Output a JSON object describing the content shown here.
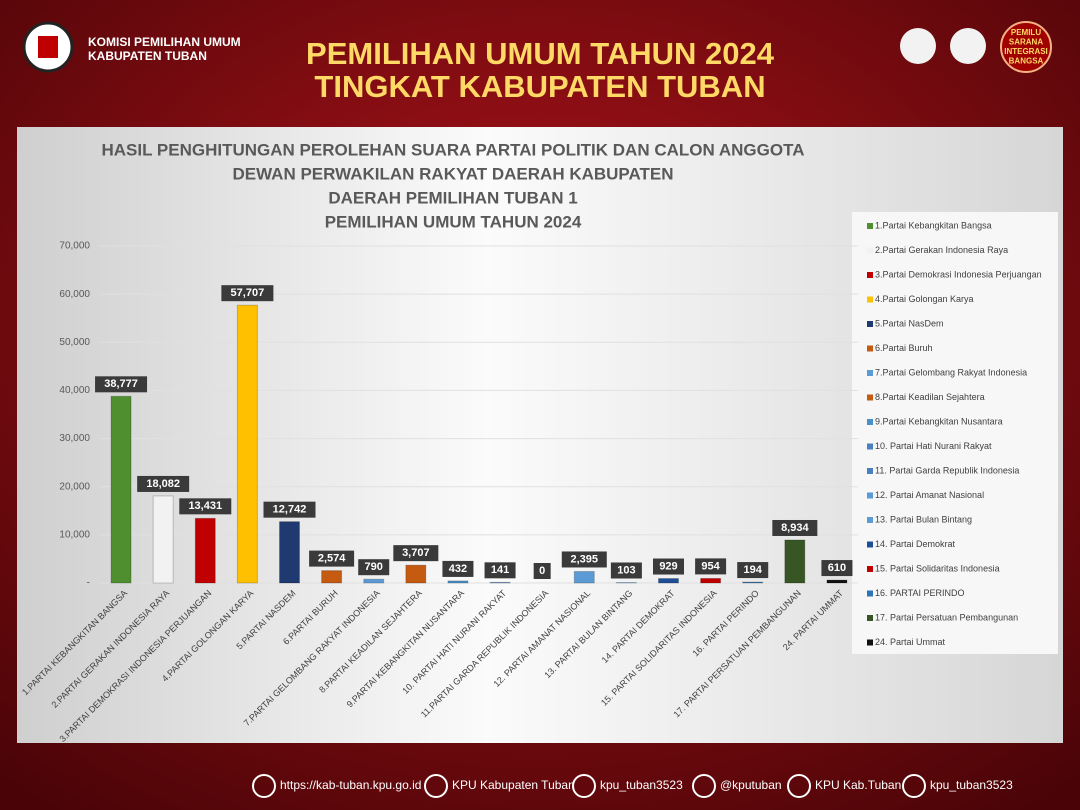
{
  "header": {
    "org_line1": "KOMISI PEMILIHAN UMUM",
    "org_line2": "KABUPATEN TUBAN",
    "title_line1": "PEMILIHAN UMUM TAHUN 2024",
    "title_line2": "TINGKAT KABUPATEN TUBAN",
    "badge": [
      "PEMILU",
      "SARANA",
      "INTEGRASI",
      "BANGSA"
    ]
  },
  "chart_data": {
    "type": "bar",
    "title": [
      "HASIL PENGHITUNGAN PEROLEHAN SUARA PARTAI POLITIK DAN CALON ANGGOTA",
      "DEWAN PERWAKILAN RAKYAT DAERAH KABUPATEN",
      "DAERAH PEMILIHAN TUBAN 1",
      "PEMILIHAN UMUM TAHUN 2024"
    ],
    "categories": [
      "1.PARTAI KEBANGKITAN BANGSA",
      "2.PARTAI GERAKAN INDONESIA RAYA",
      "3.PARTAI DEMOKRASI INDONESIA PERJUANGAN",
      "4.PARTAI GOLONGAN KARYA",
      "5.PARTAI NASDEM",
      "6.PARTAI BURUH",
      "7.PARTAI GELOMBANG RAKYAT INDONESIA",
      "8.PARTAI KEADILAN SEJAHTERA",
      "9.PARTAI KEBANGKITAN NUSANTARA",
      "10.  PARTAI HATI NURANI RAKYAT",
      "11.PARTAI GARDA REPUBLIK INDONESIA",
      "12. PARTAI AMANAT NASIONAL",
      "13. PARTAI BULAN BINTANG",
      "14. PARTAI DEMOKRAT",
      "15. PARTAI SOLIDARITAS INDONESIA",
      "16. PARTAI PERINDO",
      "17. PARTAI PERSATUAN PEMBANGUNAN",
      "24. PARTAI UMMAT"
    ],
    "values": [
      38777,
      18082,
      13431,
      57707,
      12742,
      2574,
      790,
      3707,
      432,
      141,
      0,
      2395,
      103,
      929,
      954,
      194,
      8934,
      610
    ],
    "value_labels": [
      "38,777",
      "18,082",
      "13,431",
      "57,707",
      "12,742",
      "2,574",
      "790",
      "3,707",
      "432",
      "141",
      "0",
      "2,395",
      "103",
      "929",
      "954",
      "194",
      "8,934",
      "610"
    ],
    "colors": [
      "#4f8f30",
      "#f2f2f2",
      "#c00000",
      "#ffc000",
      "#1f3a70",
      "#c55a11",
      "#5b9bd5",
      "#c55a11",
      "#4a90c8",
      "#4a7fc1",
      "#4a7fc1",
      "#5b9bd5",
      "#5b9bd5",
      "#1f4e99",
      "#c00000",
      "#2e75b6",
      "#375623",
      "#111111"
    ],
    "legend": [
      "1.Partai Kebangkitan Bangsa",
      "2.Partai Gerakan Indonesia Raya",
      "3.Partai Demokrasi Indonesia Perjuangan",
      "4.Partai Golongan Karya",
      "5.Partai NasDem",
      "6.Partai Buruh",
      "7.Partai Gelombang Rakyat Indonesia",
      "8.Partai Keadilan Sejahtera",
      "9.Partai Kebangkitan Nusantara",
      "10.  Partai Hati Nurani Rakyat",
      "11. Partai Garda Republik Indonesia",
      "12. Partai Amanat Nasional",
      "13. Partai Bulan Bintang",
      "14. Partai Demokrat",
      "15. Partai Solidaritas Indonesia",
      "16. PARTAI PERINDO",
      "17. Partai Persatuan Pembangunan",
      "24. Partai Ummat"
    ],
    "ylim": [
      0,
      70000
    ],
    "yticks": [
      {
        "value": 0,
        "label": "-"
      },
      {
        "value": 10000,
        "label": "10,000"
      },
      {
        "value": 20000,
        "label": "20,000"
      },
      {
        "value": 30000,
        "label": "30,000"
      },
      {
        "value": 40000,
        "label": "40,000"
      },
      {
        "value": 50000,
        "label": "50,000"
      },
      {
        "value": 60000,
        "label": "60,000"
      },
      {
        "value": 70000,
        "label": "70,000"
      }
    ],
    "grid": true
  },
  "footer": [
    "https://kab-tuban.kpu.go.id",
    "KPU Kabupaten Tuban",
    "kpu_tuban3523",
    "@kputuban",
    "KPU Kab.Tuban",
    "kpu_tuban3523"
  ]
}
